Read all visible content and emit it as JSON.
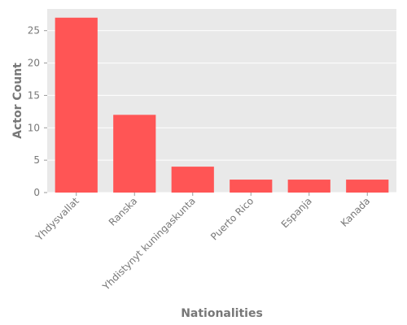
{
  "chart_data": {
    "type": "bar",
    "title": "",
    "xlabel": "Nationalities",
    "ylabel": "Actor Count",
    "categories": [
      "Yhdysvallat",
      "Ranska",
      "Yhdistynyt kuningaskunta",
      "Puerto Rico",
      "Espanja",
      "Kanada"
    ],
    "values": [
      27,
      12,
      4,
      2,
      2,
      2
    ],
    "ylim": [
      0,
      28.35
    ],
    "yticks": [
      0,
      5,
      10,
      15,
      20,
      25
    ],
    "grid": true,
    "legend": "none",
    "colors": {
      "bar": "#ff5555",
      "plot_background": "#e9e9e9",
      "grid": "#ffffff",
      "text": "#777777"
    }
  }
}
